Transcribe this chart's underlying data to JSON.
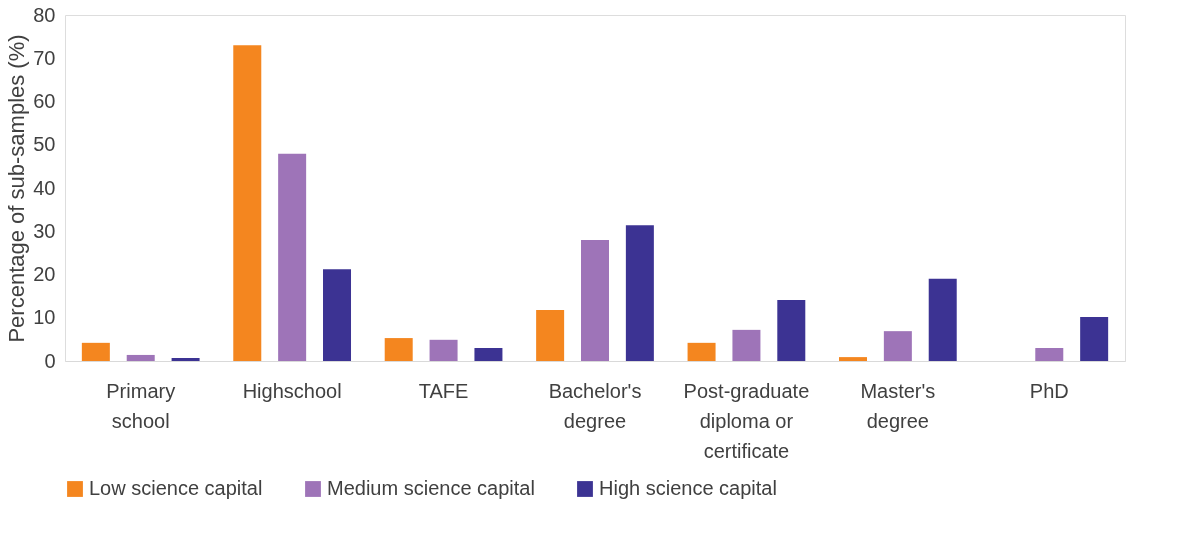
{
  "chart_data": {
    "type": "bar",
    "ylabel": "Percentage of sub-samples (%)",
    "categories": [
      "Primary school",
      "Highschool",
      "TAFE",
      "Bachelor's degree",
      "Post-graduate diploma or certificate",
      "Master's degree",
      "PhD"
    ],
    "series": [
      {
        "name": "Low science capital",
        "color": "#f4861f",
        "values": [
          4.2,
          73,
          5.3,
          11.8,
          4.2,
          0.9,
          0
        ]
      },
      {
        "name": "Medium science capital",
        "color": "#9e74b8",
        "values": [
          1.4,
          47.9,
          4.9,
          28,
          7.2,
          6.9,
          3
        ]
      },
      {
        "name": "High science capital",
        "color": "#3c3393",
        "values": [
          0.7,
          21.2,
          3,
          31.4,
          14.1,
          19,
          10.2
        ]
      }
    ],
    "ylim": [
      0,
      80
    ],
    "yticks": [
      0,
      10,
      20,
      30,
      40,
      50,
      60,
      70,
      80
    ],
    "grid": false,
    "legend": "bottom"
  }
}
